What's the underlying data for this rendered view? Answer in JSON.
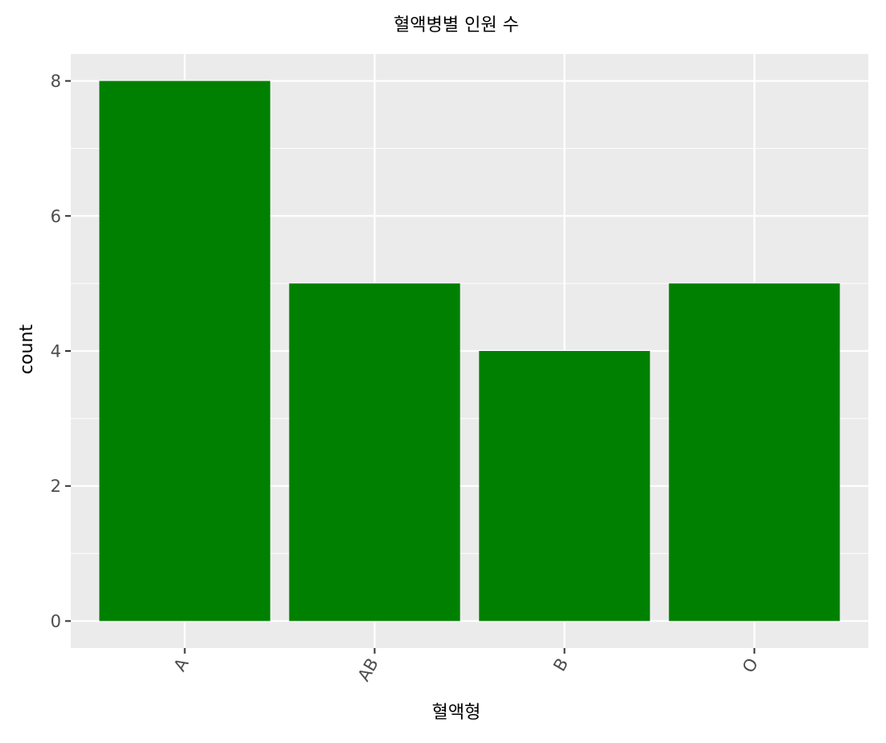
{
  "chart_data": {
    "type": "bar",
    "title": "혈액병별 인원 수",
    "xlabel": "혈액형",
    "ylabel": "count",
    "categories": [
      "A",
      "AB",
      "B",
      "O"
    ],
    "values": [
      8,
      5,
      4,
      5
    ],
    "ylim": [
      -0.4,
      8.4
    ],
    "yticks": [
      0,
      2,
      4,
      6,
      8
    ],
    "ytick_labels": [
      "0",
      "2",
      "4",
      "6",
      "8"
    ],
    "x_tick_rotation_deg": 60,
    "grid": true,
    "legend": "none",
    "colors": {
      "bar": "#008000",
      "panel_background": "#EBEBEB",
      "grid_line": "#FFFFFF",
      "tick_text": "#4D4D4D",
      "tick_mark": "#333333",
      "text": "#000000"
    }
  }
}
